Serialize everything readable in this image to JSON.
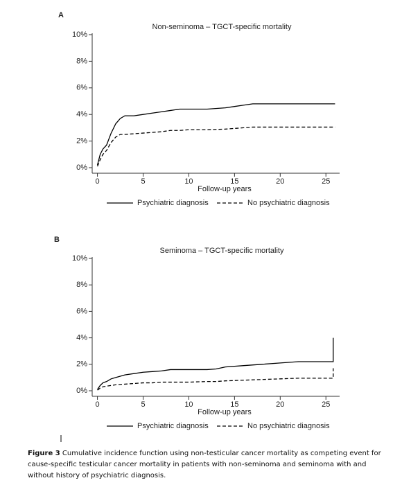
{
  "chart_data": [
    {
      "type": "line",
      "panel": "A",
      "title": "Non-seminoma – TGCT-specific mortality",
      "x_label": "Follow-up years",
      "x": [
        0,
        0.3,
        0.6,
        1,
        1.5,
        2,
        2.5,
        3,
        4,
        5,
        6,
        7,
        8,
        9,
        10,
        12,
        14,
        15,
        16,
        17,
        20,
        22,
        25,
        26
      ],
      "series": [
        {
          "name": "Psychiatric diagnosis",
          "color": "#000000",
          "dash": "solid",
          "values": [
            0.2,
            1.0,
            1.4,
            1.7,
            2.6,
            3.3,
            3.7,
            3.9,
            3.9,
            4.0,
            4.1,
            4.2,
            4.3,
            4.4,
            4.4,
            4.4,
            4.5,
            4.6,
            4.7,
            4.8,
            4.8,
            4.8,
            4.8,
            4.8
          ]
        },
        {
          "name": "No psychiatric diagnosis",
          "color": "#000000",
          "dash": "dashed",
          "values": [
            0.1,
            0.6,
            1.0,
            1.3,
            1.9,
            2.3,
            2.5,
            2.5,
            2.55,
            2.6,
            2.65,
            2.7,
            2.8,
            2.8,
            2.85,
            2.85,
            2.9,
            2.95,
            3.0,
            3.05,
            3.05,
            3.05,
            3.05,
            3.05
          ]
        }
      ],
      "xlim": [
        -0.5,
        26.5
      ],
      "xticks": [
        0,
        5,
        10,
        15,
        20,
        25
      ],
      "ylim": [
        0,
        10
      ],
      "yticks": [
        {
          "value": 0,
          "label": "0%"
        },
        {
          "value": 2,
          "label": "2%"
        },
        {
          "value": 4,
          "label": "4%"
        },
        {
          "value": 6,
          "label": "6%"
        },
        {
          "value": 8,
          "label": "8%"
        },
        {
          "value": 10,
          "label": "10%"
        }
      ],
      "grid": false,
      "legend": "bottom"
    },
    {
      "type": "line",
      "panel": "B",
      "title": "Seminoma – TGCT-specific mortality",
      "x_label": "Follow-up years",
      "x": [
        0,
        0.3,
        0.6,
        1,
        1.5,
        2,
        3,
        4,
        5,
        6,
        7,
        8,
        10,
        12,
        13,
        14,
        16,
        18,
        20,
        22,
        25,
        25.8,
        25.8
      ],
      "series": [
        {
          "name": "Psychiatric diagnosis",
          "color": "#000000",
          "dash": "solid",
          "values": [
            0.1,
            0.4,
            0.6,
            0.7,
            0.9,
            1.0,
            1.2,
            1.3,
            1.4,
            1.45,
            1.5,
            1.6,
            1.6,
            1.6,
            1.65,
            1.8,
            1.9,
            2.0,
            2.1,
            2.2,
            2.2,
            2.2,
            4.0
          ]
        },
        {
          "name": "No psychiatric diagnosis",
          "color": "#000000",
          "dash": "dashed",
          "values": [
            0.05,
            0.2,
            0.3,
            0.35,
            0.4,
            0.45,
            0.5,
            0.55,
            0.6,
            0.6,
            0.65,
            0.65,
            0.65,
            0.7,
            0.7,
            0.75,
            0.8,
            0.85,
            0.9,
            0.95,
            0.95,
            0.95,
            1.7
          ]
        }
      ],
      "xlim": [
        -0.5,
        26.5
      ],
      "xticks": [
        0,
        5,
        10,
        15,
        20,
        25
      ],
      "ylim": [
        0,
        10
      ],
      "yticks": [
        {
          "value": 0,
          "label": "0%"
        },
        {
          "value": 2,
          "label": "2%"
        },
        {
          "value": 4,
          "label": "4%"
        },
        {
          "value": 6,
          "label": "6%"
        },
        {
          "value": 8,
          "label": "8%"
        },
        {
          "value": 10,
          "label": "10%"
        }
      ],
      "grid": false,
      "legend": "bottom"
    }
  ],
  "caption": {
    "label": "Figure 3",
    "text": "Cumulative incidence function using non-testicular cancer mortality as competing event for cause-specific testicular cancer mortality in patients with non-seminoma and seminoma with and without history of psychiatric diagnosis."
  }
}
